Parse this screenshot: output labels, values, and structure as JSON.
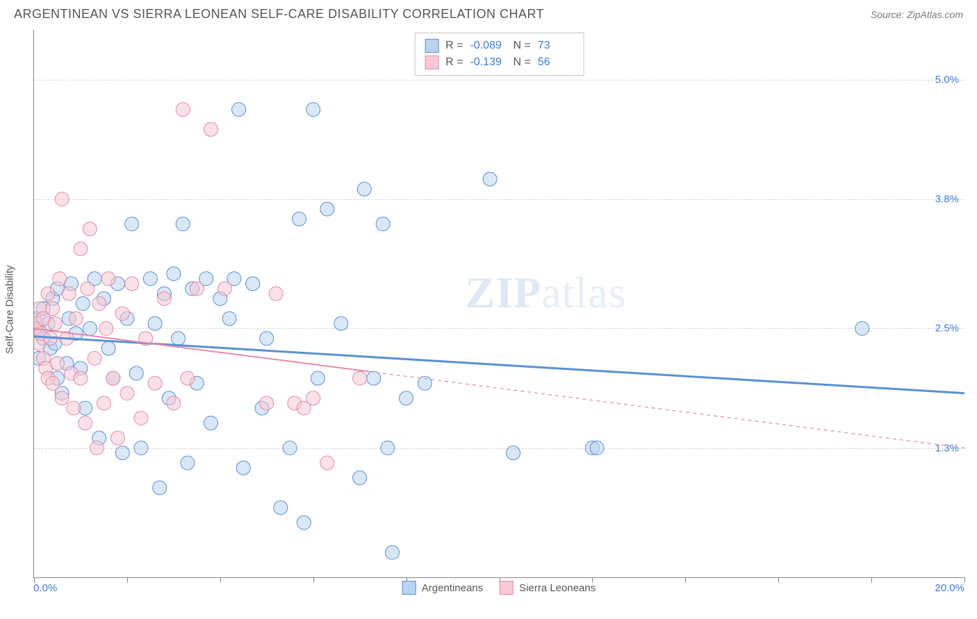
{
  "title": "ARGENTINEAN VS SIERRA LEONEAN SELF-CARE DISABILITY CORRELATION CHART",
  "source_label": "Source: ",
  "source_name": "ZipAtlas.com",
  "ylabel": "Self-Care Disability",
  "watermark_prefix": "ZIP",
  "watermark_suffix": "atlas",
  "chart": {
    "type": "scatter",
    "xlim": [
      0.0,
      20.0
    ],
    "ylim": [
      0.0,
      5.5
    ],
    "x_axis_label_left": "0.0%",
    "x_axis_label_right": "20.0%",
    "y_ticks": [
      1.3,
      2.5,
      3.8,
      5.0
    ],
    "y_tick_labels": [
      "1.3%",
      "2.5%",
      "3.8%",
      "5.0%"
    ],
    "x_tick_positions": [
      0,
      2,
      4,
      6,
      8,
      10,
      12,
      14,
      16,
      18,
      20
    ],
    "grid_color": "#d8d8d8",
    "axis_color": "#888888",
    "background_color": "#ffffff",
    "marker_radius": 10,
    "marker_opacity": 0.55,
    "series": [
      {
        "name": "Argentineans",
        "color_fill": "#b9d3f0",
        "color_stroke": "#5a8fd6",
        "R": "-0.089",
        "N": "73",
        "trend": {
          "y_at_x0": 2.42,
          "y_at_x20": 1.85,
          "solid_until_x": 20.0,
          "width": 3
        },
        "points": [
          [
            0.0,
            2.6
          ],
          [
            0.1,
            2.5
          ],
          [
            0.2,
            2.7
          ],
          [
            0.2,
            2.4
          ],
          [
            0.3,
            2.55
          ],
          [
            0.35,
            2.3
          ],
          [
            0.4,
            2.8
          ],
          [
            0.45,
            2.35
          ],
          [
            0.1,
            2.2
          ],
          [
            0.5,
            2.0
          ],
          [
            0.5,
            2.9
          ],
          [
            0.6,
            1.85
          ],
          [
            0.7,
            2.15
          ],
          [
            0.75,
            2.6
          ],
          [
            0.8,
            2.95
          ],
          [
            0.9,
            2.45
          ],
          [
            1.0,
            2.1
          ],
          [
            1.05,
            2.75
          ],
          [
            1.1,
            1.7
          ],
          [
            1.2,
            2.5
          ],
          [
            1.3,
            3.0
          ],
          [
            1.4,
            1.4
          ],
          [
            1.5,
            2.8
          ],
          [
            1.6,
            2.3
          ],
          [
            1.7,
            2.0
          ],
          [
            1.8,
            2.95
          ],
          [
            1.9,
            1.25
          ],
          [
            2.0,
            2.6
          ],
          [
            2.1,
            3.55
          ],
          [
            2.2,
            2.05
          ],
          [
            2.3,
            1.3
          ],
          [
            2.5,
            3.0
          ],
          [
            2.6,
            2.55
          ],
          [
            2.7,
            0.9
          ],
          [
            2.8,
            2.85
          ],
          [
            2.9,
            1.8
          ],
          [
            3.0,
            3.05
          ],
          [
            3.1,
            2.4
          ],
          [
            3.3,
            1.15
          ],
          [
            3.4,
            2.9
          ],
          [
            3.5,
            1.95
          ],
          [
            3.7,
            3.0
          ],
          [
            3.8,
            1.55
          ],
          [
            4.0,
            2.8
          ],
          [
            4.2,
            2.6
          ],
          [
            4.3,
            3.0
          ],
          [
            4.5,
            1.1
          ],
          [
            4.7,
            2.95
          ],
          [
            4.9,
            1.7
          ],
          [
            5.0,
            2.4
          ],
          [
            5.3,
            0.7
          ],
          [
            5.5,
            1.3
          ],
          [
            5.7,
            3.6
          ],
          [
            5.8,
            0.55
          ],
          [
            6.0,
            4.7
          ],
          [
            6.1,
            2.0
          ],
          [
            6.3,
            3.7
          ],
          [
            6.6,
            2.55
          ],
          [
            7.0,
            1.0
          ],
          [
            7.1,
            3.9
          ],
          [
            7.3,
            2.0
          ],
          [
            7.5,
            3.55
          ],
          [
            7.6,
            1.3
          ],
          [
            7.7,
            0.25
          ],
          [
            8.0,
            1.8
          ],
          [
            8.4,
            1.95
          ],
          [
            9.8,
            4.0
          ],
          [
            10.3,
            1.25
          ],
          [
            12.0,
            1.3
          ],
          [
            12.1,
            1.3
          ],
          [
            17.8,
            2.5
          ],
          [
            4.4,
            4.7
          ],
          [
            3.2,
            3.55
          ]
        ]
      },
      {
        "name": "Sierra Leoneans",
        "color_fill": "#f6c9d4",
        "color_stroke": "#e48aa4",
        "R": "-0.139",
        "N": "56",
        "trend": {
          "y_at_x0": 2.5,
          "y_at_x20": 1.3,
          "solid_until_x": 7.2,
          "width": 2
        },
        "points": [
          [
            0.0,
            2.5
          ],
          [
            0.05,
            2.55
          ],
          [
            0.1,
            2.35
          ],
          [
            0.12,
            2.7
          ],
          [
            0.15,
            2.45
          ],
          [
            0.2,
            2.2
          ],
          [
            0.2,
            2.6
          ],
          [
            0.25,
            2.1
          ],
          [
            0.3,
            2.85
          ],
          [
            0.3,
            2.0
          ],
          [
            0.35,
            2.4
          ],
          [
            0.4,
            2.7
          ],
          [
            0.4,
            1.95
          ],
          [
            0.45,
            2.55
          ],
          [
            0.5,
            2.15
          ],
          [
            0.55,
            3.0
          ],
          [
            0.6,
            1.8
          ],
          [
            0.6,
            3.8
          ],
          [
            0.7,
            2.4
          ],
          [
            0.75,
            2.85
          ],
          [
            0.8,
            2.05
          ],
          [
            0.85,
            1.7
          ],
          [
            0.9,
            2.6
          ],
          [
            1.0,
            2.0
          ],
          [
            1.0,
            3.3
          ],
          [
            1.1,
            1.55
          ],
          [
            1.15,
            2.9
          ],
          [
            1.2,
            3.5
          ],
          [
            1.3,
            2.2
          ],
          [
            1.35,
            1.3
          ],
          [
            1.4,
            2.75
          ],
          [
            1.5,
            1.75
          ],
          [
            1.55,
            2.5
          ],
          [
            1.6,
            3.0
          ],
          [
            1.7,
            2.0
          ],
          [
            1.8,
            1.4
          ],
          [
            1.9,
            2.65
          ],
          [
            2.0,
            1.85
          ],
          [
            2.1,
            2.95
          ],
          [
            2.3,
            1.6
          ],
          [
            2.4,
            2.4
          ],
          [
            2.6,
            1.95
          ],
          [
            2.8,
            2.8
          ],
          [
            3.0,
            1.75
          ],
          [
            3.2,
            4.7
          ],
          [
            3.3,
            2.0
          ],
          [
            3.5,
            2.9
          ],
          [
            3.8,
            4.5
          ],
          [
            4.1,
            2.9
          ],
          [
            5.0,
            1.75
          ],
          [
            5.2,
            2.85
          ],
          [
            5.6,
            1.75
          ],
          [
            5.8,
            1.7
          ],
          [
            6.0,
            1.8
          ],
          [
            6.3,
            1.15
          ],
          [
            7.0,
            2.0
          ]
        ]
      }
    ]
  },
  "legend": {
    "bottom_items": [
      "Argentineans",
      "Sierra Leoneans"
    ],
    "stats_labels": {
      "R": "R =",
      "N": "N ="
    }
  }
}
